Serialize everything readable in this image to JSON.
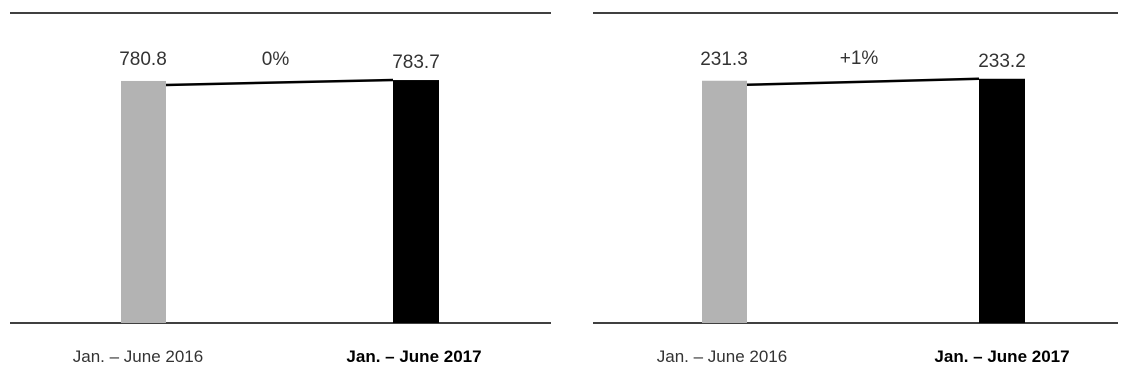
{
  "chart_data": [
    {
      "type": "bar",
      "categories": [
        "Jan. – June 2016",
        "Jan. – June 2017"
      ],
      "values": [
        780.8,
        783.7
      ],
      "value_labels": [
        "780.8",
        "783.7"
      ],
      "change_label": "0%",
      "bar_colors": [
        "#b3b3b3",
        "#000000"
      ],
      "ylim": [
        0,
        1000
      ],
      "grid": false
    },
    {
      "type": "bar",
      "categories": [
        "Jan. – June 2016",
        "Jan. – June 2017"
      ],
      "values": [
        231.3,
        233.2
      ],
      "value_labels": [
        "231.3",
        "233.2"
      ],
      "change_label": "+1%",
      "bar_colors": [
        "#b3b3b3",
        "#000000"
      ],
      "ylim": [
        0,
        296
      ],
      "grid": false
    }
  ]
}
